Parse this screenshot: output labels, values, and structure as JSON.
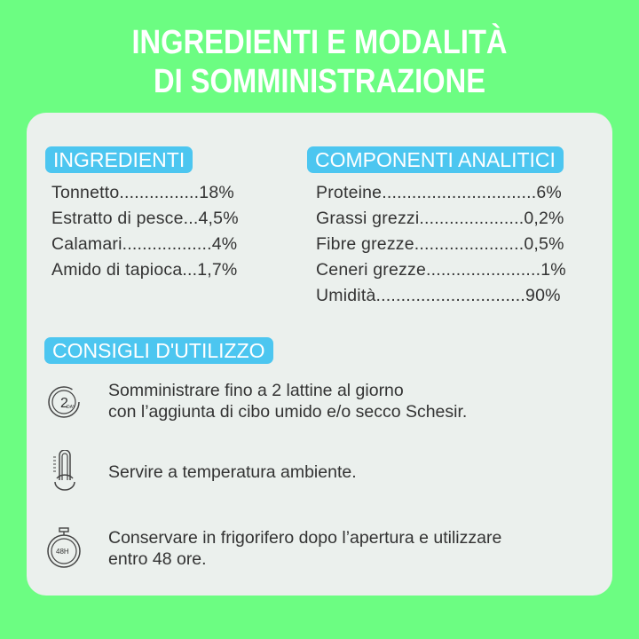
{
  "title": {
    "line1": "INGREDIENTI E MODALITÀ",
    "line2": "DI SOMMINISTRAZIONE"
  },
  "ingredients": {
    "heading": "INGREDIENTI",
    "items": [
      "Tonnetto................18%",
      "Estratto di pesce...4,5%",
      "Calamari..................4%",
      "Amido di tapioca...1,7%"
    ]
  },
  "analytics": {
    "heading": "COMPONENTI ANALITICI",
    "items": [
      "Proteine...............................6%",
      "Grassi grezzi.....................0,2%",
      "Fibre grezze......................0,5%",
      "Ceneri grezze.......................1%",
      "Umidità..............................90%"
    ]
  },
  "usage": {
    "heading": "CONSIGLI D'UTILIZZO",
    "tips": [
      {
        "icon": "2-day-clock-icon",
        "icon_text": "2",
        "icon_sub": "DAY",
        "line1": "Somministrare fino a 2 lattine al giorno",
        "line2": "con l’aggiunta di cibo umido e/o secco Schesir."
      },
      {
        "icon": "thermometer-icon",
        "line1": "Servire a temperatura ambiente."
      },
      {
        "icon": "stopwatch-48h-icon",
        "icon_text": "48H",
        "line1": "Conservare in frigorifero dopo l’apertura e utilizzare",
        "line2": "entro 48 ore."
      }
    ]
  },
  "colors": {
    "background": "#6cfd82",
    "card": "#ebf0ed",
    "badge": "#4cc6f0"
  }
}
